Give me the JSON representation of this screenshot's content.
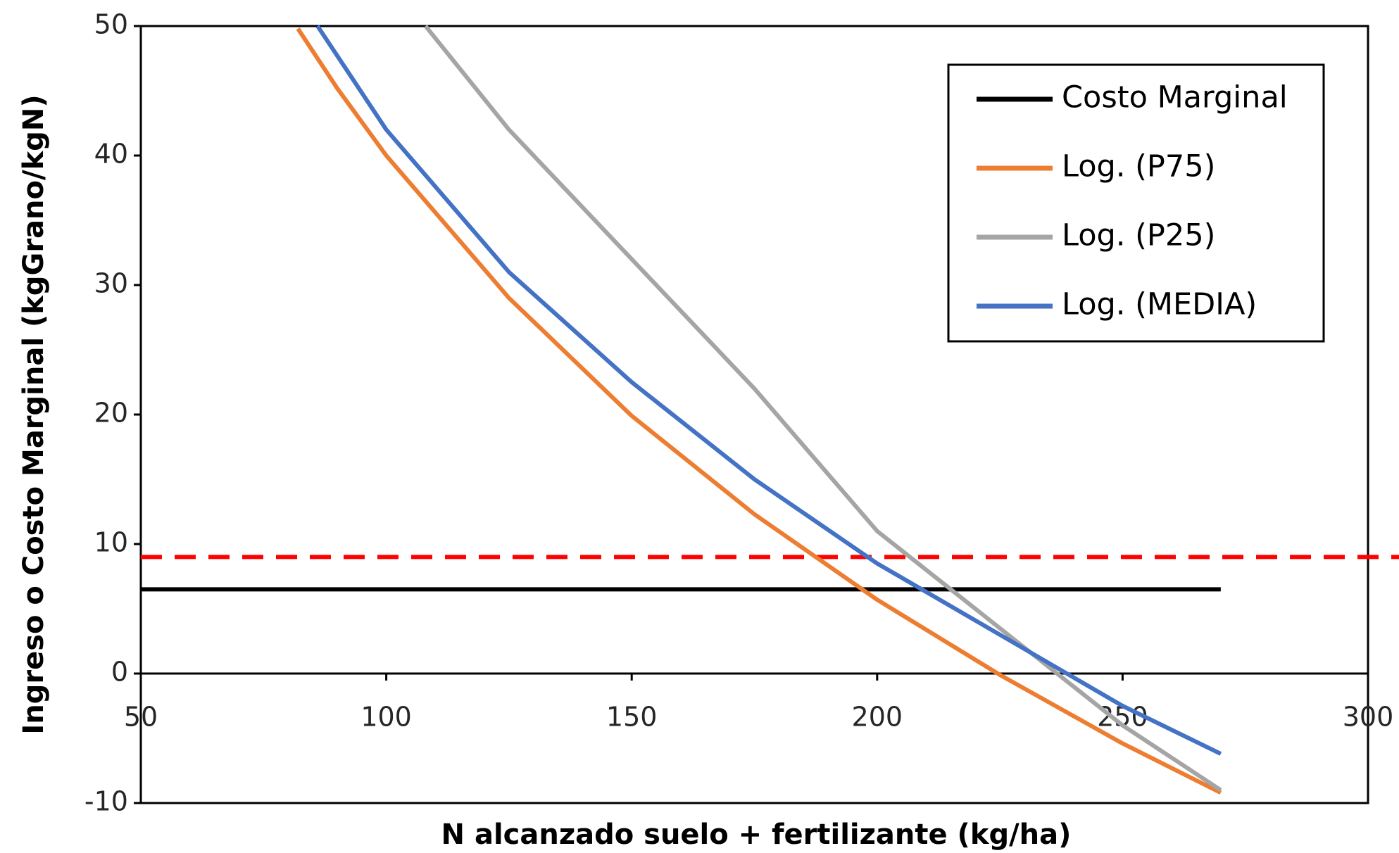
{
  "chart_data": {
    "type": "line",
    "x_label": "N alcanzado suelo + fertilizante (kg/ha)",
    "y_label": "Ingreso o Costo Marginal (kgGrano/kgN)",
    "xlim": [
      50,
      300
    ],
    "xticks": [
      50,
      100,
      150,
      200,
      250,
      300
    ],
    "ylim": [
      -10,
      50
    ],
    "yticks": [
      -10,
      0,
      10,
      20,
      30,
      40,
      50
    ],
    "grid": false,
    "legend": "top-right",
    "series": [
      {
        "name": "Costo Marginal",
        "color": "#000000",
        "x": [
          50,
          270
        ],
        "values": [
          6.5,
          6.5
        ]
      },
      {
        "name": "Log. (P75)",
        "color": "#ed7d31",
        "x": [
          82,
          90,
          100,
          125,
          150,
          175,
          200,
          225,
          250,
          270
        ],
        "values": [
          49.8,
          45.2,
          40,
          29,
          19.9,
          12.3,
          5.7,
          -0.1,
          -5.4,
          -9.2
        ]
      },
      {
        "name": "Log. (P25)",
        "color": "#a5a5a5",
        "x": [
          108,
          125,
          150,
          175,
          200,
          225,
          250,
          270
        ],
        "values": [
          50,
          42,
          32,
          22,
          11,
          3.5,
          -4,
          -9
        ]
      },
      {
        "name": "Log. (MEDIA)",
        "color": "#4472c4",
        "x": [
          86,
          100,
          125,
          150,
          175,
          200,
          225,
          250,
          270
        ],
        "values": [
          50,
          42,
          31,
          22.5,
          15,
          8.5,
          3,
          -2.5,
          -6.2
        ]
      }
    ],
    "reference_lines": [
      {
        "value": 9,
        "color": "#ff0000",
        "dashed": true
      }
    ]
  }
}
